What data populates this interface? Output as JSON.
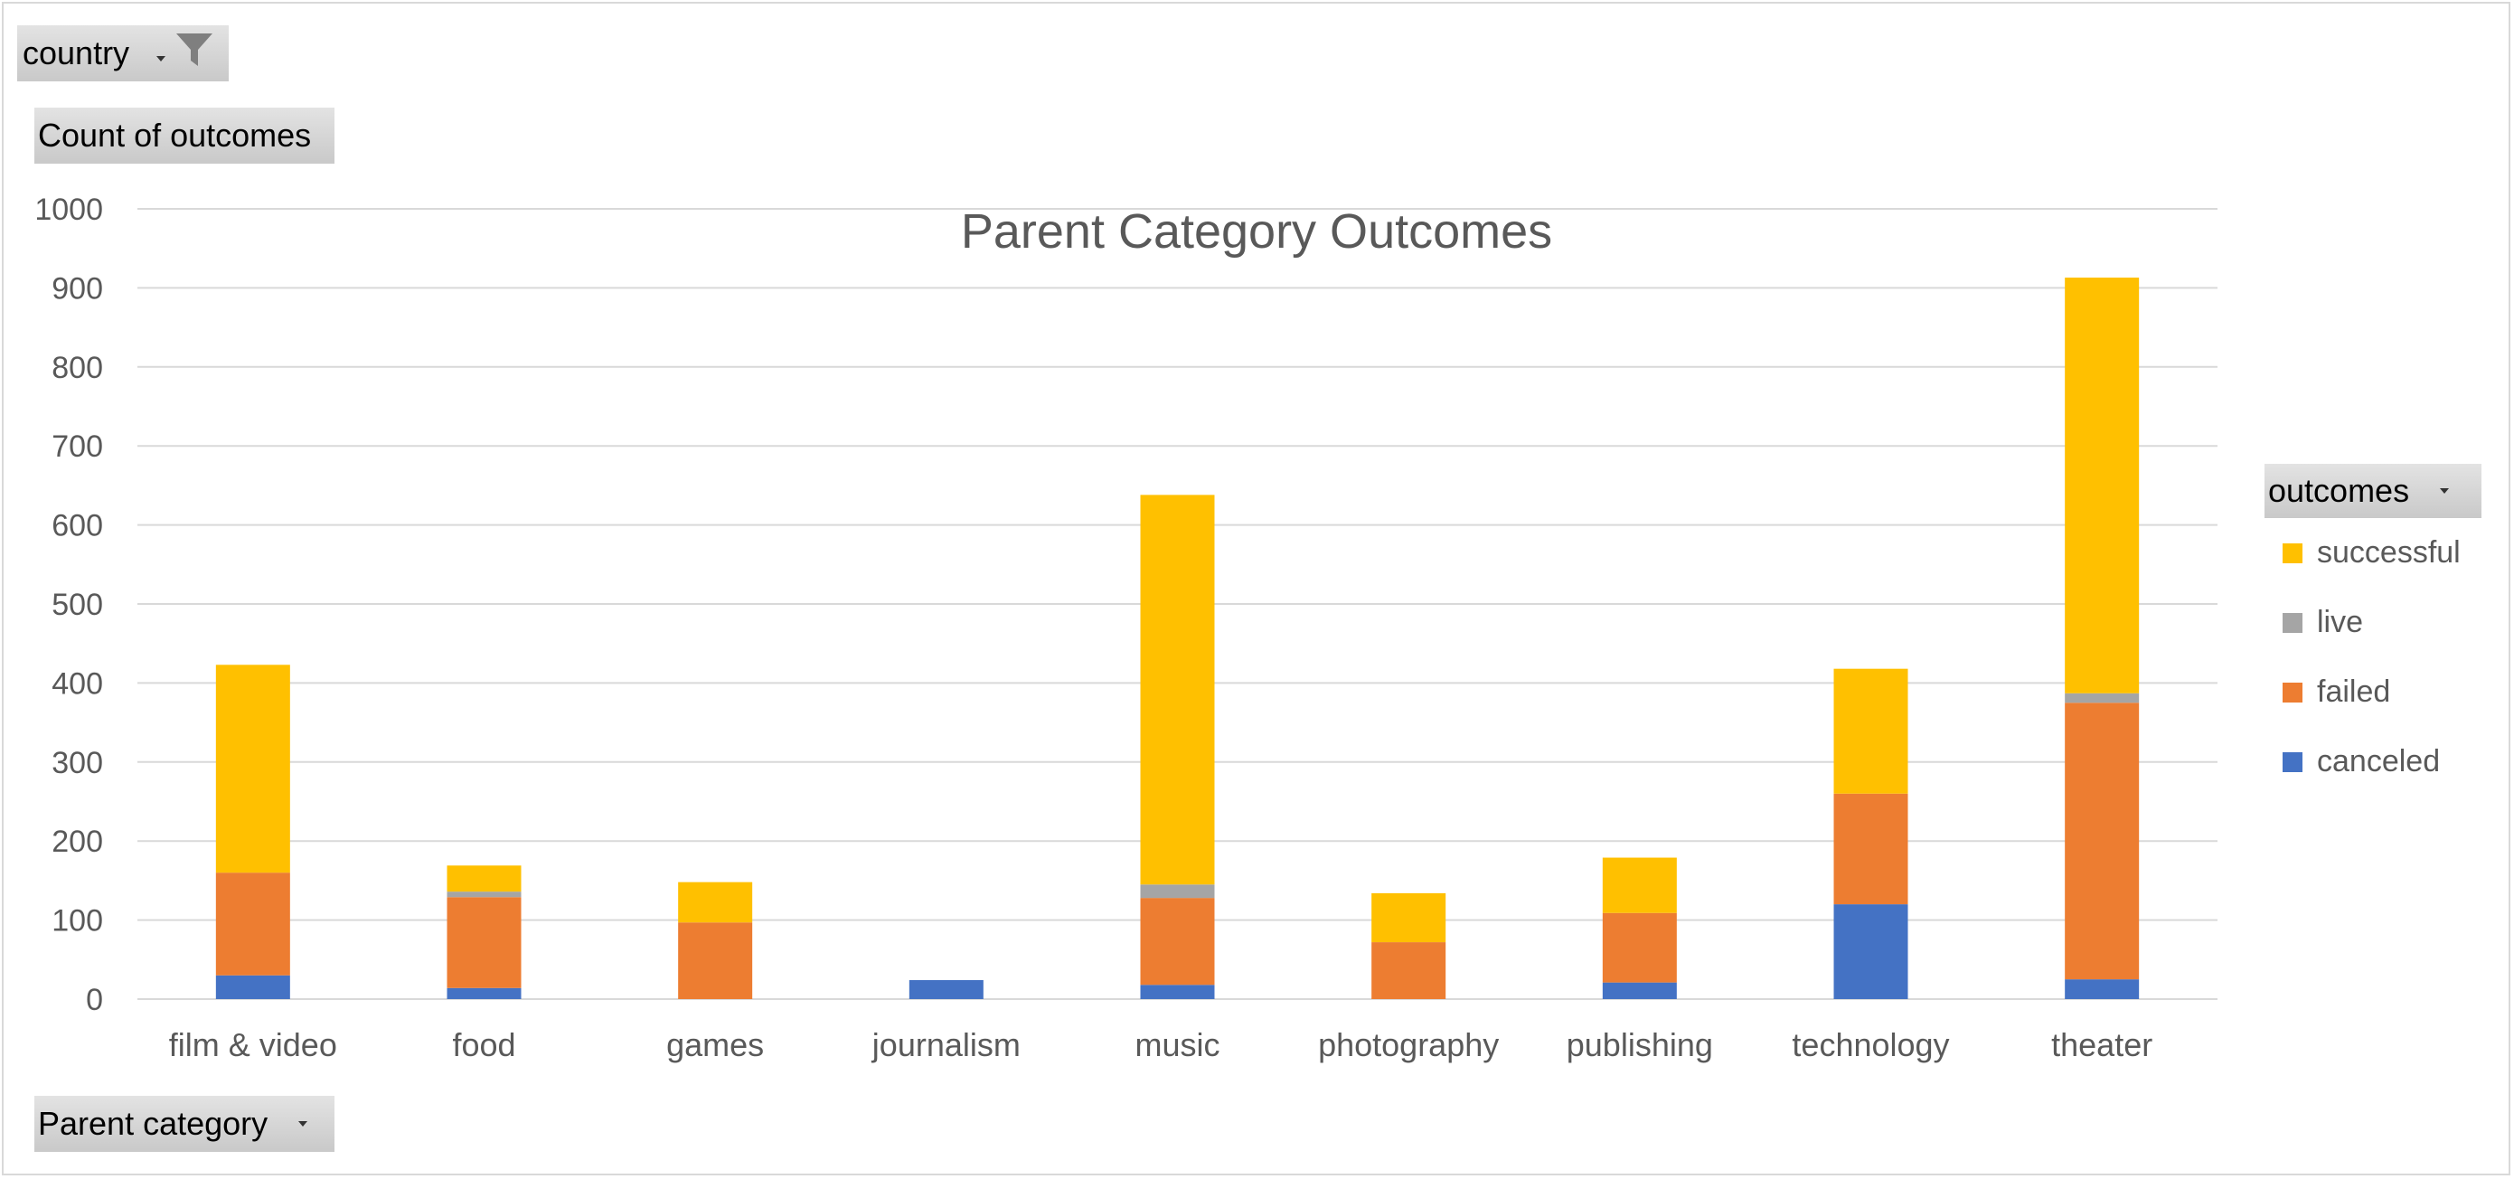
{
  "filters": {
    "country_label": "country",
    "filter_icon": "funnel-icon",
    "values_label": "Count of outcomes",
    "axis_field_label": "Parent category",
    "legend_field_label": "outcomes"
  },
  "colors": {
    "canceled": "#4472C4",
    "failed": "#ED7D31",
    "live": "#A5A5A5",
    "successful": "#FFC000",
    "grid": "#d9d9d9",
    "text": "#595959"
  },
  "chart_data": {
    "type": "bar",
    "stacked": true,
    "title": "Parent Category Outcomes",
    "xlabel": "",
    "ylabel": "",
    "ylim": [
      0,
      1000
    ],
    "yticks": [
      0,
      100,
      200,
      300,
      400,
      500,
      600,
      700,
      800,
      900,
      1000
    ],
    "grid": true,
    "legend_position": "right",
    "categories": [
      "film & video",
      "food",
      "games",
      "journalism",
      "music",
      "photography",
      "publishing",
      "technology",
      "theater"
    ],
    "series": [
      {
        "name": "canceled",
        "values": [
          30,
          14,
          0,
          24,
          18,
          0,
          21,
          120,
          25
        ]
      },
      {
        "name": "failed",
        "values": [
          130,
          115,
          97,
          0,
          110,
          72,
          88,
          140,
          350
        ]
      },
      {
        "name": "live",
        "values": [
          0,
          7,
          0,
          0,
          17,
          0,
          0,
          0,
          12
        ]
      },
      {
        "name": "successful",
        "values": [
          263,
          33,
          51,
          0,
          493,
          62,
          70,
          158,
          526
        ]
      }
    ]
  }
}
